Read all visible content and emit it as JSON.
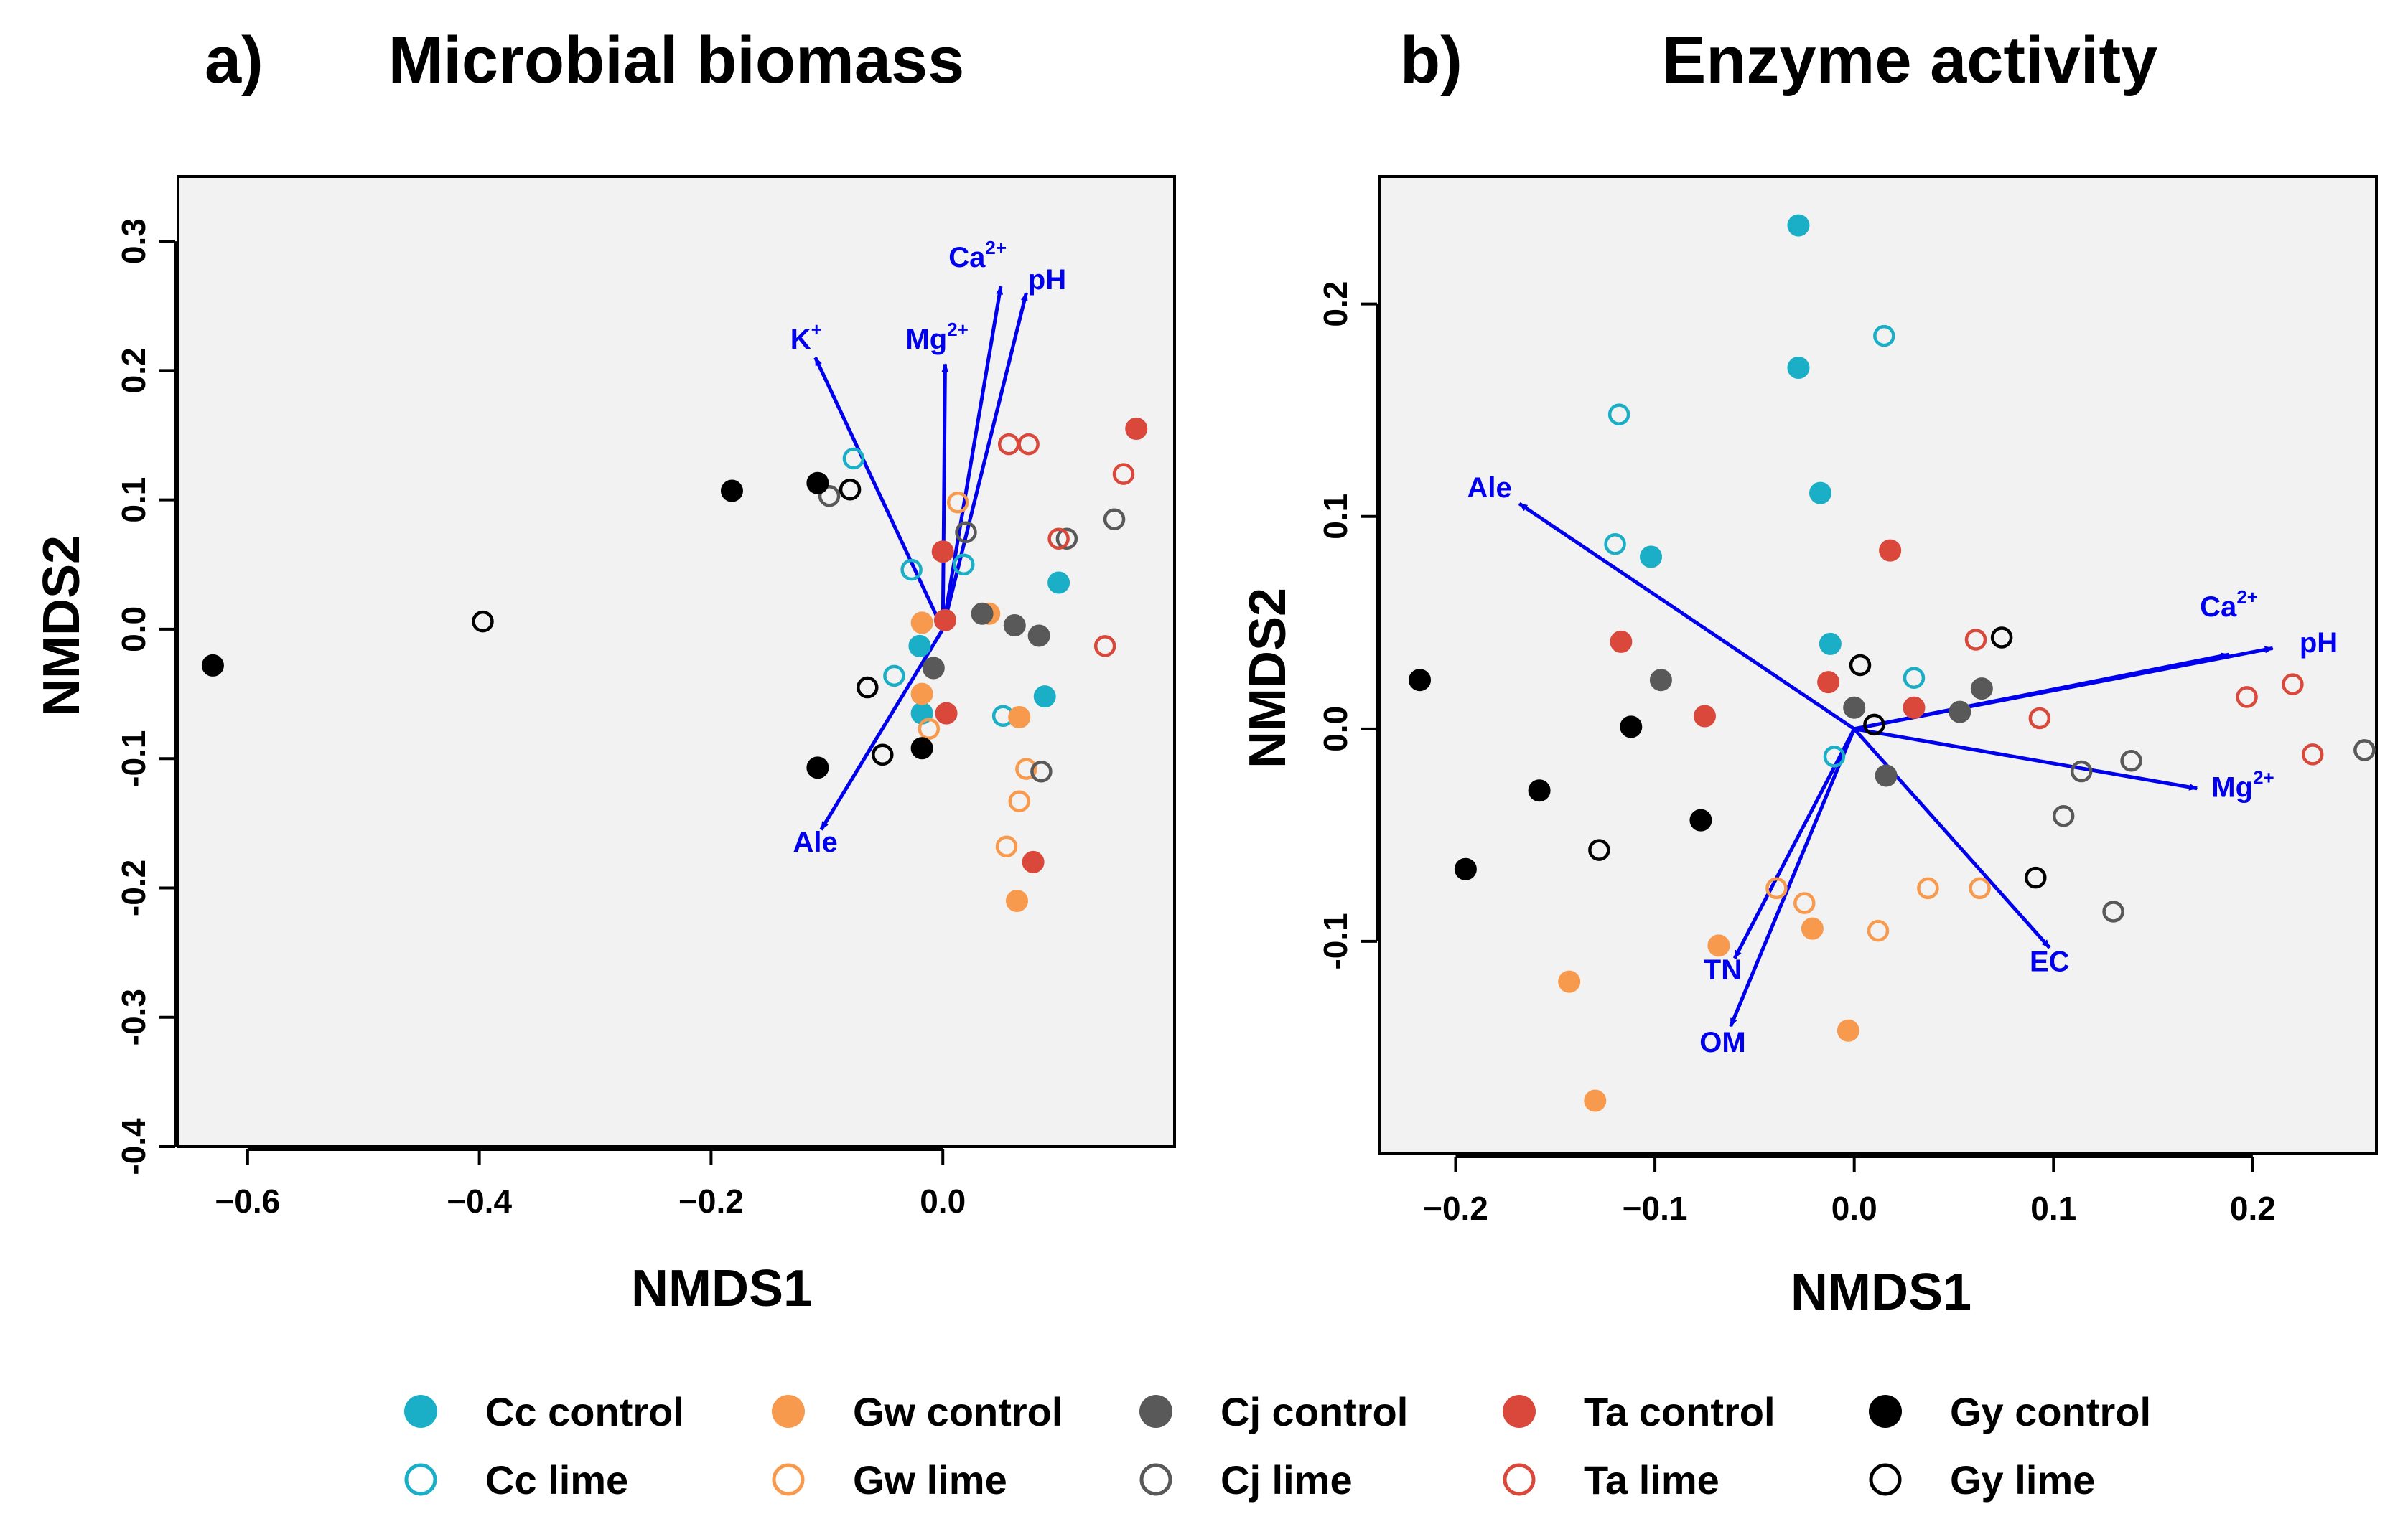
{
  "colors": {
    "Cc": "#1aafc6",
    "Gw": "#f79a4e",
    "Cj": "#595959",
    "Ta": "#d9483b",
    "Gy": "#000000",
    "arrow": "#0000ee",
    "panel_bg": "#f2f2f2"
  },
  "legend": {
    "entries": [
      {
        "group": "Cc",
        "treatment": "control",
        "label": "Cc control"
      },
      {
        "group": "Cc",
        "treatment": "lime",
        "label": "Cc lime"
      },
      {
        "group": "Gw",
        "treatment": "control",
        "label": "Gw control"
      },
      {
        "group": "Gw",
        "treatment": "lime",
        "label": "Gw lime"
      },
      {
        "group": "Cj",
        "treatment": "control",
        "label": "Cj control"
      },
      {
        "group": "Cj",
        "treatment": "lime",
        "label": "Cj lime"
      },
      {
        "group": "Ta",
        "treatment": "control",
        "label": "Ta control"
      },
      {
        "group": "Ta",
        "treatment": "lime",
        "label": "Ta lime"
      },
      {
        "group": "Gy",
        "treatment": "control",
        "label": "Gy control"
      },
      {
        "group": "Gy",
        "treatment": "lime",
        "label": "Gy lime"
      }
    ]
  },
  "chart_data": [
    {
      "type": "scatter",
      "panel_letter": "a)",
      "title": "Microbial biomass",
      "xlabel": "NMDS1",
      "ylabel": "NMDS2",
      "xlim": [
        -0.66,
        0.2
      ],
      "ylim": [
        -0.4,
        0.35
      ],
      "xticks": [
        {
          "v": -0.6,
          "label": "−0.6"
        },
        {
          "v": -0.4,
          "label": "−0.4"
        },
        {
          "v": -0.2,
          "label": "−0.2"
        },
        {
          "v": 0.0,
          "label": "0.0"
        }
      ],
      "yticks": [
        {
          "v": -0.4,
          "label": "-0.4"
        },
        {
          "v": -0.3,
          "label": "-0.3"
        },
        {
          "v": -0.2,
          "label": "-0.2"
        },
        {
          "v": -0.1,
          "label": "-0.1"
        },
        {
          "v": 0.0,
          "label": "0.0"
        },
        {
          "v": 0.1,
          "label": "0.1"
        },
        {
          "v": 0.2,
          "label": "0.2"
        },
        {
          "v": 0.3,
          "label": "0.3"
        }
      ],
      "vectors": [
        {
          "label": "K",
          "sup": "+",
          "x": -0.11,
          "y": 0.21,
          "lx": -0.118,
          "ly": 0.217
        },
        {
          "label": "Mg",
          "sup": "2+",
          "x": 0.002,
          "y": 0.205,
          "lx": -0.005,
          "ly": 0.217
        },
        {
          "label": "Ca",
          "sup": "2+",
          "x": 0.05,
          "y": 0.265,
          "lx": 0.03,
          "ly": 0.28
        },
        {
          "label": "pH",
          "sup": "",
          "x": 0.072,
          "y": 0.26,
          "lx": 0.09,
          "ly": 0.263
        },
        {
          "label": "Ale",
          "sup": "",
          "x": -0.105,
          "y": -0.155,
          "lx": -0.11,
          "ly": -0.172
        }
      ],
      "points": [
        {
          "g": "Cc",
          "t": "control",
          "x": 0.1,
          "y": 0.036
        },
        {
          "g": "Cc",
          "t": "control",
          "x": -0.02,
          "y": -0.013
        },
        {
          "g": "Cc",
          "t": "control",
          "x": -0.018,
          "y": -0.065
        },
        {
          "g": "Cc",
          "t": "control",
          "x": 0.088,
          "y": -0.052
        },
        {
          "g": "Cc",
          "t": "lime",
          "x": -0.077,
          "y": 0.132
        },
        {
          "g": "Cc",
          "t": "lime",
          "x": -0.027,
          "y": 0.046
        },
        {
          "g": "Cc",
          "t": "lime",
          "x": 0.018,
          "y": 0.05
        },
        {
          "g": "Cc",
          "t": "lime",
          "x": -0.042,
          "y": -0.036
        },
        {
          "g": "Cc",
          "t": "lime",
          "x": 0.052,
          "y": -0.067
        },
        {
          "g": "Gw",
          "t": "control",
          "x": -0.018,
          "y": 0.005
        },
        {
          "g": "Gw",
          "t": "control",
          "x": 0.04,
          "y": 0.012
        },
        {
          "g": "Gw",
          "t": "control",
          "x": -0.018,
          "y": -0.05
        },
        {
          "g": "Gw",
          "t": "control",
          "x": 0.066,
          "y": -0.068
        },
        {
          "g": "Gw",
          "t": "control",
          "x": 0.064,
          "y": -0.21
        },
        {
          "g": "Gw",
          "t": "lime",
          "x": 0.013,
          "y": 0.098
        },
        {
          "g": "Gw",
          "t": "lime",
          "x": -0.012,
          "y": -0.077
        },
        {
          "g": "Gw",
          "t": "lime",
          "x": 0.072,
          "y": -0.108
        },
        {
          "g": "Gw",
          "t": "lime",
          "x": 0.066,
          "y": -0.133
        },
        {
          "g": "Gw",
          "t": "lime",
          "x": 0.055,
          "y": -0.168
        },
        {
          "g": "Cj",
          "t": "control",
          "x": 0.034,
          "y": 0.012
        },
        {
          "g": "Cj",
          "t": "control",
          "x": 0.062,
          "y": 0.003
        },
        {
          "g": "Cj",
          "t": "control",
          "x": 0.083,
          "y": -0.005
        },
        {
          "g": "Cj",
          "t": "control",
          "x": -0.008,
          "y": -0.03
        },
        {
          "g": "Cj",
          "t": "lime",
          "x": -0.098,
          "y": 0.103
        },
        {
          "g": "Cj",
          "t": "lime",
          "x": 0.02,
          "y": 0.075
        },
        {
          "g": "Cj",
          "t": "lime",
          "x": 0.107,
          "y": 0.07
        },
        {
          "g": "Cj",
          "t": "lime",
          "x": 0.148,
          "y": 0.085
        },
        {
          "g": "Cj",
          "t": "lime",
          "x": 0.085,
          "y": -0.11
        },
        {
          "g": "Ta",
          "t": "control",
          "x": 0.167,
          "y": 0.155
        },
        {
          "g": "Ta",
          "t": "control",
          "x": 0.0,
          "y": 0.06
        },
        {
          "g": "Ta",
          "t": "control",
          "x": 0.002,
          "y": 0.007
        },
        {
          "g": "Ta",
          "t": "control",
          "x": 0.003,
          "y": -0.065
        },
        {
          "g": "Ta",
          "t": "control",
          "x": 0.078,
          "y": -0.18
        },
        {
          "g": "Ta",
          "t": "lime",
          "x": 0.057,
          "y": 0.143
        },
        {
          "g": "Ta",
          "t": "lime",
          "x": 0.074,
          "y": 0.143
        },
        {
          "g": "Ta",
          "t": "lime",
          "x": 0.156,
          "y": 0.12
        },
        {
          "g": "Ta",
          "t": "lime",
          "x": 0.1,
          "y": 0.07
        },
        {
          "g": "Ta",
          "t": "lime",
          "x": 0.14,
          "y": -0.013
        },
        {
          "g": "Gy",
          "t": "control",
          "x": -0.63,
          "y": -0.028
        },
        {
          "g": "Gy",
          "t": "control",
          "x": -0.182,
          "y": 0.107
        },
        {
          "g": "Gy",
          "t": "control",
          "x": -0.108,
          "y": 0.113
        },
        {
          "g": "Gy",
          "t": "control",
          "x": -0.108,
          "y": -0.107
        },
        {
          "g": "Gy",
          "t": "control",
          "x": -0.018,
          "y": -0.092
        },
        {
          "g": "Gy",
          "t": "lime",
          "x": -0.397,
          "y": 0.006
        },
        {
          "g": "Gy",
          "t": "lime",
          "x": -0.08,
          "y": 0.108
        },
        {
          "g": "Gy",
          "t": "lime",
          "x": -0.065,
          "y": -0.045
        },
        {
          "g": "Gy",
          "t": "lime",
          "x": -0.052,
          "y": -0.097
        }
      ]
    },
    {
      "type": "scatter",
      "panel_letter": "b)",
      "title": "Enzyme activity",
      "xlabel": "NMDS1",
      "ylabel": "NMDS2",
      "xlim": [
        -0.238,
        0.262
      ],
      "ylim": [
        -0.2,
        0.26
      ],
      "xticks": [
        {
          "v": -0.2,
          "label": "−0.2"
        },
        {
          "v": -0.1,
          "label": "−0.1"
        },
        {
          "v": 0.0,
          "label": "0.0"
        },
        {
          "v": 0.1,
          "label": "0.1"
        },
        {
          "v": 0.2,
          "label": "0.2"
        }
      ],
      "yticks": [
        {
          "v": -0.1,
          "label": "-0.1"
        },
        {
          "v": 0.0,
          "label": "0.0"
        },
        {
          "v": 0.1,
          "label": "0.1"
        },
        {
          "v": 0.2,
          "label": "0.2"
        }
      ],
      "vectors": [
        {
          "label": "Ale",
          "sup": "",
          "x": -0.168,
          "y": 0.106,
          "lx": -0.183,
          "ly": 0.109
        },
        {
          "label": "Ca",
          "sup": "2+",
          "x": 0.188,
          "y": 0.035,
          "lx": 0.188,
          "ly": 0.053
        },
        {
          "label": "pH",
          "sup": "",
          "x": 0.21,
          "y": 0.038,
          "lx": 0.233,
          "ly": 0.036
        },
        {
          "label": "Mg",
          "sup": "2+",
          "x": 0.172,
          "y": -0.028,
          "lx": 0.195,
          "ly": -0.032
        },
        {
          "label": "EC",
          "sup": "",
          "x": 0.098,
          "y": -0.103,
          "lx": 0.098,
          "ly": -0.114
        },
        {
          "label": "TN",
          "sup": "",
          "x": -0.06,
          "y": -0.108,
          "lx": -0.066,
          "ly": -0.118
        },
        {
          "label": "OM",
          "sup": "",
          "x": -0.062,
          "y": -0.14,
          "lx": -0.066,
          "ly": -0.152
        }
      ],
      "points": [
        {
          "g": "Cc",
          "t": "control",
          "x": -0.028,
          "y": 0.237
        },
        {
          "g": "Cc",
          "t": "control",
          "x": -0.028,
          "y": 0.17
        },
        {
          "g": "Cc",
          "t": "control",
          "x": -0.017,
          "y": 0.111
        },
        {
          "g": "Cc",
          "t": "control",
          "x": -0.102,
          "y": 0.081
        },
        {
          "g": "Cc",
          "t": "control",
          "x": -0.012,
          "y": 0.04
        },
        {
          "g": "Cc",
          "t": "lime",
          "x": 0.015,
          "y": 0.185
        },
        {
          "g": "Cc",
          "t": "lime",
          "x": -0.118,
          "y": 0.148
        },
        {
          "g": "Cc",
          "t": "lime",
          "x": -0.12,
          "y": 0.087
        },
        {
          "g": "Cc",
          "t": "lime",
          "x": 0.03,
          "y": 0.024
        },
        {
          "g": "Cc",
          "t": "lime",
          "x": -0.01,
          "y": -0.013
        },
        {
          "g": "Gw",
          "t": "control",
          "x": -0.068,
          "y": -0.102
        },
        {
          "g": "Gw",
          "t": "control",
          "x": -0.021,
          "y": -0.094
        },
        {
          "g": "Gw",
          "t": "control",
          "x": -0.143,
          "y": -0.119
        },
        {
          "g": "Gw",
          "t": "control",
          "x": -0.003,
          "y": -0.142
        },
        {
          "g": "Gw",
          "t": "control",
          "x": -0.13,
          "y": -0.175
        },
        {
          "g": "Gw",
          "t": "lime",
          "x": -0.039,
          "y": -0.075
        },
        {
          "g": "Gw",
          "t": "lime",
          "x": -0.025,
          "y": -0.082
        },
        {
          "g": "Gw",
          "t": "lime",
          "x": 0.037,
          "y": -0.075
        },
        {
          "g": "Gw",
          "t": "lime",
          "x": 0.063,
          "y": -0.075
        },
        {
          "g": "Gw",
          "t": "lime",
          "x": 0.012,
          "y": -0.095
        },
        {
          "g": "Cj",
          "t": "control",
          "x": -0.097,
          "y": 0.023
        },
        {
          "g": "Cj",
          "t": "control",
          "x": 0.0,
          "y": 0.01
        },
        {
          "g": "Cj",
          "t": "control",
          "x": 0.053,
          "y": 0.008
        },
        {
          "g": "Cj",
          "t": "control",
          "x": 0.064,
          "y": 0.019
        },
        {
          "g": "Cj",
          "t": "control",
          "x": 0.016,
          "y": -0.022
        },
        {
          "g": "Cj",
          "t": "lime",
          "x": 0.114,
          "y": -0.02
        },
        {
          "g": "Cj",
          "t": "lime",
          "x": 0.139,
          "y": -0.015
        },
        {
          "g": "Cj",
          "t": "lime",
          "x": 0.105,
          "y": -0.041
        },
        {
          "g": "Cj",
          "t": "lime",
          "x": 0.13,
          "y": -0.086
        },
        {
          "g": "Cj",
          "t": "lime",
          "x": 0.256,
          "y": -0.01
        },
        {
          "g": "Ta",
          "t": "control",
          "x": 0.018,
          "y": 0.084
        },
        {
          "g": "Ta",
          "t": "control",
          "x": -0.117,
          "y": 0.041
        },
        {
          "g": "Ta",
          "t": "control",
          "x": -0.013,
          "y": 0.022
        },
        {
          "g": "Ta",
          "t": "control",
          "x": 0.03,
          "y": 0.01
        },
        {
          "g": "Ta",
          "t": "control",
          "x": -0.075,
          "y": 0.006
        },
        {
          "g": "Ta",
          "t": "lime",
          "x": 0.061,
          "y": 0.042
        },
        {
          "g": "Ta",
          "t": "lime",
          "x": 0.093,
          "y": 0.005
        },
        {
          "g": "Ta",
          "t": "lime",
          "x": 0.22,
          "y": 0.021
        },
        {
          "g": "Ta",
          "t": "lime",
          "x": 0.197,
          "y": 0.015
        },
        {
          "g": "Ta",
          "t": "lime",
          "x": 0.23,
          "y": -0.012
        },
        {
          "g": "Gy",
          "t": "control",
          "x": -0.218,
          "y": 0.023
        },
        {
          "g": "Gy",
          "t": "control",
          "x": -0.112,
          "y": 0.001
        },
        {
          "g": "Gy",
          "t": "control",
          "x": -0.158,
          "y": -0.029
        },
        {
          "g": "Gy",
          "t": "control",
          "x": -0.077,
          "y": -0.043
        },
        {
          "g": "Gy",
          "t": "control",
          "x": -0.195,
          "y": -0.066
        },
        {
          "g": "Gy",
          "t": "lime",
          "x": 0.074,
          "y": 0.043
        },
        {
          "g": "Gy",
          "t": "lime",
          "x": 0.003,
          "y": 0.03
        },
        {
          "g": "Gy",
          "t": "lime",
          "x": 0.01,
          "y": 0.002
        },
        {
          "g": "Gy",
          "t": "lime",
          "x": -0.128,
          "y": -0.057
        },
        {
          "g": "Gy",
          "t": "lime",
          "x": 0.091,
          "y": -0.07
        }
      ]
    }
  ]
}
